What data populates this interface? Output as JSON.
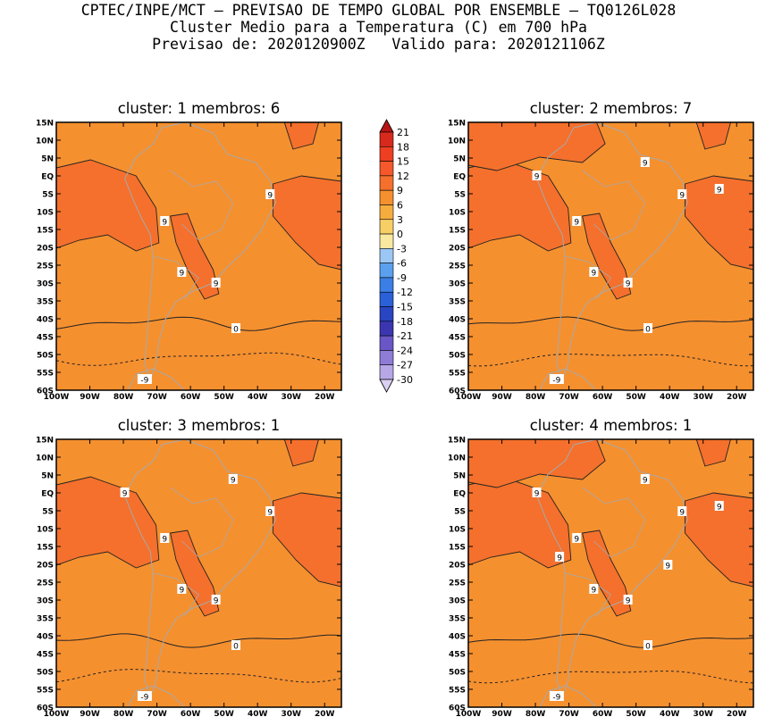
{
  "title_lines": [
    "CPTEC/INPE/MCT — PREVISAO DE TEMPO GLOBAL POR ENSEMBLE — TQ0126L028",
    "Cluster Medio para a Temperatura (C) em 700 hPa",
    "Previsao de: 2020120900Z   Valido para: 2020121106Z"
  ],
  "panels": [
    {
      "title": "cluster: 1   membros: 6",
      "variant": 0
    },
    {
      "title": "cluster: 2   membros: 7",
      "variant": 1
    },
    {
      "title": "cluster: 3   membros: 1",
      "variant": 2
    },
    {
      "title": "cluster: 4   membros: 1",
      "variant": 3
    }
  ],
  "lat_labels": [
    "15N",
    "10N",
    "5N",
    "EQ",
    "5S",
    "10S",
    "15S",
    "20S",
    "25S",
    "30S",
    "35S",
    "40S",
    "45S",
    "50S",
    "55S",
    "60S"
  ],
  "lon_labels": [
    "100W",
    "90W",
    "80W",
    "70W",
    "60W",
    "50W",
    "40W",
    "30W",
    "20W"
  ],
  "colorbar": {
    "labels": [
      "21",
      "18",
      "15",
      "12",
      "9",
      "6",
      "3",
      "0",
      "-3",
      "-6",
      "-9",
      "-12",
      "-15",
      "-18",
      "-21",
      "-24",
      "-27",
      "-30"
    ],
    "colors": [
      "#b71414",
      "#d82a1c",
      "#ee3f22",
      "#f5582a",
      "#f4702c",
      "#f5902f",
      "#f6ad3e",
      "#f8cf67",
      "#f9e8a0",
      "#9cc7f4",
      "#5aa0ee",
      "#3b7fe6",
      "#2a61d8",
      "#2a45c2",
      "#3b36b0",
      "#6a56c6",
      "#8e7cd7",
      "#b7a7e6",
      "#dad0f3"
    ]
  },
  "contour_labels": {
    "p0": [
      "9",
      "9",
      "9",
      "9",
      "0",
      "-9"
    ],
    "p1": [
      "9",
      "9",
      "9",
      "9",
      "9",
      "9",
      "9",
      "0",
      "-9"
    ],
    "p2": [
      "9",
      "9",
      "9",
      "9",
      "9",
      "9",
      "0",
      "-9"
    ],
    "p3": [
      "9",
      "9",
      "9",
      "9",
      "9",
      "9",
      "9",
      "9",
      "9",
      "0",
      "-9"
    ]
  }
}
